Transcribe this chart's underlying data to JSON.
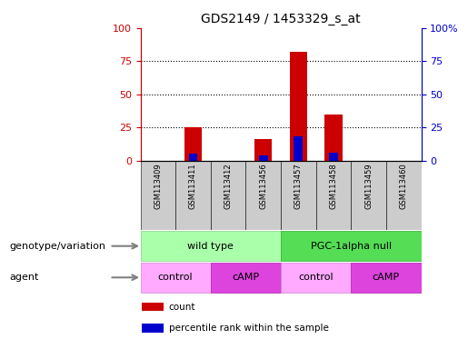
{
  "title": "GDS2149 / 1453329_s_at",
  "samples": [
    "GSM113409",
    "GSM113411",
    "GSM113412",
    "GSM113456",
    "GSM113457",
    "GSM113458",
    "GSM113459",
    "GSM113460"
  ],
  "count_values": [
    0,
    25,
    0,
    16,
    82,
    35,
    0,
    0
  ],
  "percentile_values": [
    0,
    5,
    0,
    4,
    18,
    6,
    0,
    0
  ],
  "ylim": [
    0,
    100
  ],
  "yticks": [
    0,
    25,
    50,
    75,
    100
  ],
  "ytick_labels_left": [
    "0",
    "25",
    "50",
    "75",
    "100"
  ],
  "ytick_labels_right": [
    "0",
    "25",
    "50",
    "75",
    "100%"
  ],
  "count_color": "#cc0000",
  "percentile_color": "#0000cc",
  "genotype_groups": [
    {
      "label": "wild type",
      "start": 0,
      "end": 3,
      "color": "#aaffaa",
      "edge_color": "#88cc88"
    },
    {
      "label": "PGC-1alpha null",
      "start": 4,
      "end": 7,
      "color": "#55dd55",
      "edge_color": "#33aa33"
    }
  ],
  "agent_groups": [
    {
      "label": "control",
      "start": 0,
      "end": 1,
      "color": "#ffaaff",
      "edge_color": "#cc88cc"
    },
    {
      "label": "cAMP",
      "start": 2,
      "end": 3,
      "color": "#dd44dd",
      "edge_color": "#aa22aa"
    },
    {
      "label": "control",
      "start": 4,
      "end": 5,
      "color": "#ffaaff",
      "edge_color": "#cc88cc"
    },
    {
      "label": "cAMP",
      "start": 6,
      "end": 7,
      "color": "#dd44dd",
      "edge_color": "#aa22aa"
    }
  ],
  "legend_items": [
    {
      "label": "count",
      "color": "#cc0000"
    },
    {
      "label": "percentile rank within the sample",
      "color": "#0000cc"
    }
  ],
  "geno_label": "genotype/variation",
  "agent_label": "agent",
  "left_color": "#cc0000",
  "right_color": "#0000cc",
  "bar_width": 0.5,
  "pct_bar_width": 0.25
}
